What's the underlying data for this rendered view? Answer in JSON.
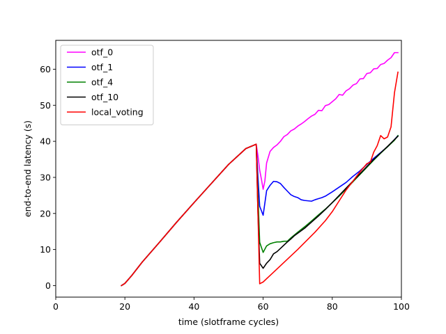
{
  "chart_data": {
    "type": "line",
    "title": "",
    "xlabel": "time (slotframe cycles)",
    "ylabel": "end-to-end latency (s)",
    "xlim": [
      0,
      100
    ],
    "ylim": [
      -3.2,
      68
    ],
    "xticks": [
      0,
      20,
      40,
      60,
      80,
      100
    ],
    "yticks": [
      0,
      10,
      20,
      30,
      40,
      50,
      60
    ],
    "xtick_labels": [
      "0",
      "20",
      "40",
      "60",
      "80",
      "100"
    ],
    "ytick_labels": [
      "0",
      "10",
      "20",
      "30",
      "40",
      "50",
      "60"
    ],
    "grid": false,
    "legend_position": "upper-left",
    "series": [
      {
        "name": "otf_0",
        "color": "#ff00ff",
        "x": [
          19,
          20,
          22,
          25,
          30,
          35,
          40,
          45,
          50,
          55,
          58,
          58.5,
          59,
          59.5,
          60,
          60.5,
          61,
          62,
          63,
          64,
          65,
          66,
          67,
          68,
          69,
          70,
          71,
          72,
          73,
          74,
          75,
          76,
          77,
          78,
          79,
          80,
          81,
          82,
          83,
          84,
          85,
          86,
          87,
          88,
          89,
          90,
          91,
          92,
          93,
          94,
          95,
          96,
          97,
          98,
          99
        ],
        "y": [
          0,
          0.6,
          2.8,
          6.5,
          12.0,
          17.6,
          23.0,
          28.3,
          33.6,
          38.0,
          39.2,
          36.0,
          32.0,
          29.5,
          26.7,
          29.0,
          34.0,
          37.2,
          38.3,
          39.0,
          40.0,
          41.3,
          41.9,
          42.9,
          43.4,
          44.2,
          44.8,
          45.5,
          46.3,
          47.0,
          47.5,
          48.6,
          48.5,
          49.9,
          50.2,
          51.0,
          51.8,
          53.0,
          52.8,
          54.0,
          54.6,
          55.6,
          56.0,
          57.3,
          57.4,
          58.8,
          59.0,
          60.1,
          60.2,
          61.3,
          61.6,
          62.5,
          63.2,
          64.6,
          64.6
        ]
      },
      {
        "name": "otf_1",
        "color": "#0000ff",
        "x": [
          19,
          20,
          22,
          25,
          30,
          35,
          40,
          45,
          50,
          55,
          58,
          58.5,
          59,
          60,
          61,
          62,
          63,
          64,
          65,
          66,
          67,
          68,
          69,
          70,
          71,
          72,
          73,
          74,
          75,
          76,
          77,
          78,
          79,
          80,
          82,
          84,
          86,
          88,
          90,
          92,
          94,
          96,
          98,
          99
        ],
        "y": [
          0,
          0.6,
          2.8,
          6.5,
          12.0,
          17.6,
          23.0,
          28.3,
          33.6,
          38.0,
          39.2,
          30.0,
          22.0,
          19.5,
          26.3,
          27.8,
          28.9,
          28.8,
          28.3,
          27.2,
          26.2,
          25.2,
          24.7,
          24.4,
          23.8,
          23.6,
          23.5,
          23.4,
          23.8,
          24.1,
          24.4,
          24.8,
          25.4,
          26.0,
          27.3,
          28.6,
          30.3,
          31.8,
          33.6,
          35.3,
          36.9,
          38.5,
          40.5,
          41.6
        ]
      },
      {
        "name": "otf_4",
        "color": "#008000",
        "x": [
          19,
          20,
          22,
          25,
          30,
          35,
          40,
          45,
          50,
          55,
          58,
          58.5,
          59,
          60,
          61,
          62,
          63,
          64,
          65,
          66,
          67,
          68,
          69,
          70,
          72,
          74,
          76,
          78,
          80,
          82,
          84,
          86,
          88,
          90,
          92,
          94,
          96,
          98,
          99
        ],
        "y": [
          0,
          0.6,
          2.8,
          6.5,
          12.0,
          17.6,
          23.0,
          28.3,
          33.6,
          38.0,
          39.2,
          25.0,
          12.0,
          9.2,
          11.0,
          11.6,
          11.9,
          12.1,
          12.1,
          12.3,
          12.3,
          13.2,
          14.0,
          14.8,
          16.3,
          17.9,
          19.6,
          21.2,
          23.0,
          24.8,
          26.8,
          28.8,
          30.8,
          32.8,
          34.8,
          36.7,
          38.5,
          40.3,
          41.6
        ]
      },
      {
        "name": "otf_10",
        "color": "#000000",
        "x": [
          19,
          20,
          22,
          25,
          30,
          35,
          40,
          45,
          50,
          55,
          58,
          58.5,
          59,
          60,
          61,
          62,
          63,
          64,
          65,
          66,
          67,
          68,
          69,
          70,
          72,
          74,
          76,
          78,
          80,
          82,
          84,
          86,
          88,
          90,
          92,
          94,
          96,
          98,
          99
        ],
        "y": [
          0,
          0.6,
          2.8,
          6.5,
          12.0,
          17.6,
          23.0,
          28.3,
          33.6,
          38.0,
          39.2,
          20.0,
          6.2,
          4.8,
          6.2,
          7.2,
          8.8,
          9.4,
          10.3,
          11.2,
          12.1,
          12.9,
          13.8,
          14.5,
          15.9,
          17.6,
          19.3,
          21.1,
          23.0,
          25.0,
          27.0,
          29.0,
          31.0,
          33.0,
          35.0,
          36.8,
          38.6,
          40.5,
          41.4
        ]
      },
      {
        "name": "local_voting",
        "color": "#ff0000",
        "x": [
          19,
          20,
          22,
          25,
          30,
          35,
          40,
          45,
          50,
          55,
          58,
          58.5,
          59,
          60,
          62,
          65,
          70,
          75,
          78,
          80,
          82,
          84,
          86,
          88,
          90,
          91,
          92,
          93,
          94,
          95,
          96,
          97,
          98,
          99
        ],
        "y": [
          0,
          0.6,
          2.8,
          6.5,
          12.0,
          17.6,
          23.0,
          28.3,
          33.6,
          38.0,
          39.2,
          20.0,
          0.5,
          1.0,
          2.8,
          5.5,
          10.0,
          14.8,
          18.0,
          20.5,
          23.5,
          26.5,
          29.0,
          31.5,
          33.8,
          34.2,
          37.0,
          38.8,
          41.6,
          40.7,
          41.2,
          44.0,
          53.5,
          59.2
        ]
      }
    ]
  }
}
